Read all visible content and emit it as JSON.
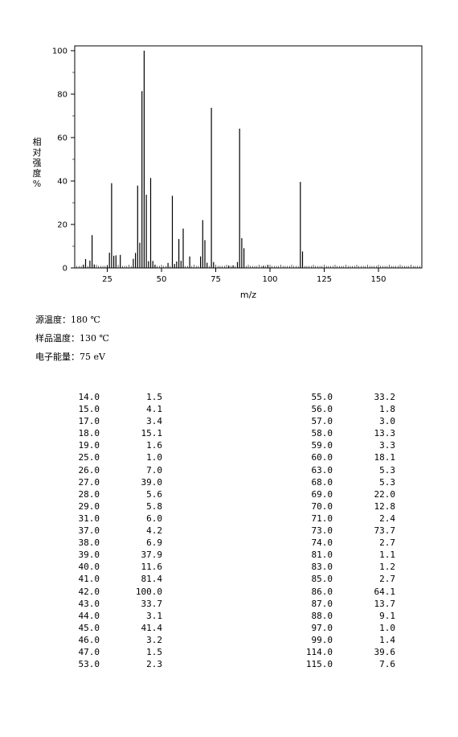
{
  "chart_data": {
    "type": "bar",
    "xlabel": "m/z",
    "ylabel": "相对强度%",
    "xlim": [
      10,
      170
    ],
    "ylim": [
      0,
      100
    ],
    "xticks": [
      25,
      50,
      75,
      100,
      125,
      150
    ],
    "yticks": [
      0,
      20,
      40,
      60,
      80,
      100
    ],
    "grid": false,
    "x": [
      14,
      15,
      17,
      18,
      19,
      25,
      26,
      27,
      28,
      29,
      31,
      37,
      38,
      39,
      40,
      41,
      42,
      43,
      44,
      45,
      46,
      47,
      53,
      55,
      56,
      57,
      58,
      59,
      60,
      63,
      68,
      69,
      70,
      71,
      73,
      74,
      81,
      83,
      85,
      86,
      87,
      88,
      97,
      99,
      114,
      115
    ],
    "values": [
      1.5,
      4.1,
      3.4,
      15.1,
      1.6,
      1.0,
      7.0,
      39.0,
      5.6,
      5.8,
      6.0,
      4.2,
      6.9,
      37.9,
      11.6,
      81.4,
      100.0,
      33.7,
      3.1,
      41.4,
      3.2,
      1.5,
      2.3,
      33.2,
      1.8,
      3.0,
      13.3,
      3.3,
      18.1,
      5.3,
      5.3,
      22.0,
      12.8,
      2.4,
      73.7,
      2.7,
      1.1,
      1.2,
      2.7,
      64.1,
      13.7,
      9.1,
      1.0,
      1.4,
      39.6,
      7.6
    ]
  },
  "conditions": {
    "source_temp": "源温度：180 ℃",
    "sample_temp": "样品温度：130 ℃",
    "electron_energy": "电子能量：75 eV"
  },
  "table": {
    "left": [
      {
        "mz": "14.0",
        "intensity": "1.5"
      },
      {
        "mz": "15.0",
        "intensity": "4.1"
      },
      {
        "mz": "17.0",
        "intensity": "3.4"
      },
      {
        "mz": "18.0",
        "intensity": "15.1"
      },
      {
        "mz": "19.0",
        "intensity": "1.6"
      },
      {
        "mz": "25.0",
        "intensity": "1.0"
      },
      {
        "mz": "26.0",
        "intensity": "7.0"
      },
      {
        "mz": "27.0",
        "intensity": "39.0"
      },
      {
        "mz": "28.0",
        "intensity": "5.6"
      },
      {
        "mz": "29.0",
        "intensity": "5.8"
      },
      {
        "mz": "31.0",
        "intensity": "6.0"
      },
      {
        "mz": "37.0",
        "intensity": "4.2"
      },
      {
        "mz": "38.0",
        "intensity": "6.9"
      },
      {
        "mz": "39.0",
        "intensity": "37.9"
      },
      {
        "mz": "40.0",
        "intensity": "11.6"
      },
      {
        "mz": "41.0",
        "intensity": "81.4"
      },
      {
        "mz": "42.0",
        "intensity": "100.0"
      },
      {
        "mz": "43.0",
        "intensity": "33.7"
      },
      {
        "mz": "44.0",
        "intensity": "3.1"
      },
      {
        "mz": "45.0",
        "intensity": "41.4"
      },
      {
        "mz": "46.0",
        "intensity": "3.2"
      },
      {
        "mz": "47.0",
        "intensity": "1.5"
      },
      {
        "mz": "53.0",
        "intensity": "2.3"
      }
    ],
    "right": [
      {
        "mz": "55.0",
        "intensity": "33.2"
      },
      {
        "mz": "56.0",
        "intensity": "1.8"
      },
      {
        "mz": "57.0",
        "intensity": "3.0"
      },
      {
        "mz": "58.0",
        "intensity": "13.3"
      },
      {
        "mz": "59.0",
        "intensity": "3.3"
      },
      {
        "mz": "60.0",
        "intensity": "18.1"
      },
      {
        "mz": "63.0",
        "intensity": "5.3"
      },
      {
        "mz": "68.0",
        "intensity": "5.3"
      },
      {
        "mz": "69.0",
        "intensity": "22.0"
      },
      {
        "mz": "70.0",
        "intensity": "12.8"
      },
      {
        "mz": "71.0",
        "intensity": "2.4"
      },
      {
        "mz": "73.0",
        "intensity": "73.7"
      },
      {
        "mz": "74.0",
        "intensity": "2.7"
      },
      {
        "mz": "81.0",
        "intensity": "1.1"
      },
      {
        "mz": "83.0",
        "intensity": "1.2"
      },
      {
        "mz": "85.0",
        "intensity": "2.7"
      },
      {
        "mz": "86.0",
        "intensity": "64.1"
      },
      {
        "mz": "87.0",
        "intensity": "13.7"
      },
      {
        "mz": "88.0",
        "intensity": "9.1"
      },
      {
        "mz": "97.0",
        "intensity": "1.0"
      },
      {
        "mz": "99.0",
        "intensity": "1.4"
      },
      {
        "mz": "114.0",
        "intensity": "39.6"
      },
      {
        "mz": "115.0",
        "intensity": "7.6"
      }
    ]
  }
}
